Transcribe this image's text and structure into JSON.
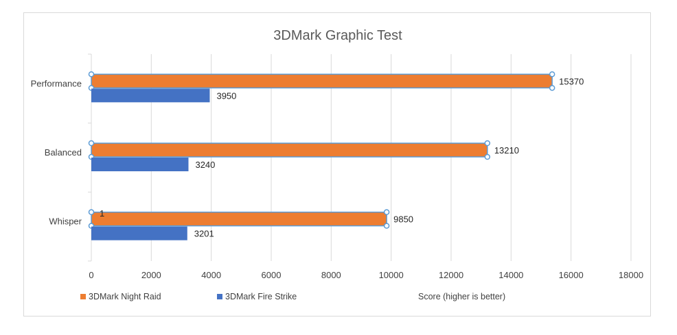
{
  "chart_data": {
    "type": "bar",
    "orientation": "horizontal",
    "title": "3DMark Graphic Test",
    "xlabel": "Score (higher is better)",
    "ylabel": "",
    "categories": [
      "Performance",
      "Balanced",
      "Whisper"
    ],
    "series": [
      {
        "name": "3DMark Night Raid",
        "color": "#ED7D31",
        "values": [
          15370,
          13210,
          9850
        ],
        "selected": true
      },
      {
        "name": "3DMark Fire Strike",
        "color": "#4472C4",
        "values": [
          3950,
          3240,
          3201
        ]
      }
    ],
    "xlim": [
      0,
      18000
    ],
    "xticks": [
      0,
      2000,
      4000,
      6000,
      8000,
      10000,
      12000,
      14000,
      16000,
      18000
    ],
    "grid": true,
    "legend": "bottom-left",
    "annotations": [
      "1"
    ]
  }
}
